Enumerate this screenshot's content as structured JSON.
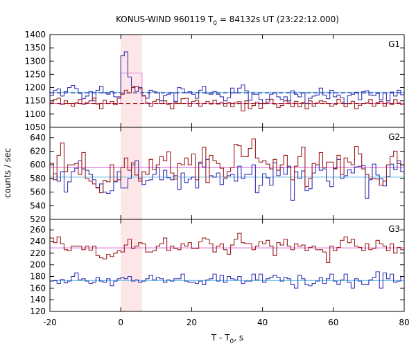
{
  "chart_data": {
    "type": "line",
    "title": "KONUS-WIND 960119 T",
    "title_sub": "0",
    "title_rest": " = 84132s UT (23:22:12.000)",
    "xlabel": "T - T",
    "xlabel_sub": "0",
    "xlabel_rest": ", s",
    "ylabel": "counts / sec",
    "xlim": [
      -20,
      80
    ],
    "x_ticks": [
      "-20",
      "0",
      "20",
      "40",
      "60",
      "80"
    ],
    "x_tick_values": [
      -20,
      0,
      20,
      40,
      60,
      80
    ],
    "highlight": {
      "x_start": 0,
      "x_end": 6,
      "color": "#fde6e8"
    },
    "colors": {
      "blue": "#3434b4",
      "red": "#9a1c1c",
      "pink": "#e27ae2",
      "cyan": "#78c8e8"
    },
    "bin_width": 1.0,
    "panels": [
      {
        "name": "G1",
        "ylim": [
          1050,
          1400
        ],
        "yticks": [
          1050,
          1100,
          1150,
          1200,
          1250,
          1300,
          1350,
          1400
        ],
        "series": [
          {
            "color_key": "blue",
            "x_start": -20,
            "values": [
              1170,
              1190,
              1195,
              1168,
              1185,
              1200,
              1208,
              1196,
              1178,
              1158,
              1168,
              1185,
              1150,
              1190,
              1205,
              1180,
              1175,
              1185,
              1165,
              1165,
              1320,
              1335,
              1240,
              1205,
              1185,
              1200,
              1170,
              1160,
              1190,
              1185,
              1180,
              1150,
              1170,
              1175,
              1180,
              1148,
              1200,
              1195,
              1180,
              1185,
              1175,
              1160,
              1190,
              1205,
              1178,
              1175,
              1185,
              1175,
              1165,
              1150,
              1162,
              1198,
              1180,
              1198,
              1210,
              1188,
              1152,
              1175,
              1175,
              1155,
              1140,
              1156,
              1175,
              1180,
              1165,
              1155,
              1165,
              1150,
              1188,
              1175,
              1165,
              1180,
              1140,
              1160,
              1168,
              1172,
              1198,
              1172,
              1158,
              1190,
              1165,
              1172,
              1162,
              1140,
              1170,
              1175,
              1182,
              1154,
              1185,
              1188,
              1172,
              1170,
              1178,
              1154,
              1180,
              1150,
              1183,
              1168,
              1190,
              1173
            ]
          },
          {
            "color_key": "red",
            "x_start": -20,
            "values": [
              1145,
              1155,
              1160,
              1135,
              1150,
              1140,
              1130,
              1142,
              1155,
              1137,
              1144,
              1150,
              1160,
              1138,
              1120,
              1152,
              1140,
              1148,
              1135,
              1160,
              1175,
              1190,
              1180,
              1200,
              1205,
              1195,
              1168,
              1142,
              1130,
              1148,
              1155,
              1140,
              1150,
              1135,
              1120,
              1145,
              1140,
              1158,
              1160,
              1130,
              1148,
              1152,
              1130,
              1140,
              1148,
              1138,
              1152,
              1138,
              1145,
              1130,
              1143,
              1128,
              1145,
              1147,
              1112,
              1150,
              1120,
              1132,
              1145,
              1122,
              1140,
              1145,
              1156,
              1138,
              1125,
              1132,
              1150,
              1145,
              1128,
              1148,
              1128,
              1143,
              1120,
              1150,
              1130,
              1142,
              1150,
              1147,
              1140,
              1130,
              1135,
              1156,
              1145,
              1128,
              1140,
              1148,
              1120,
              1133,
              1140,
              1142,
              1155,
              1130,
              1143,
              1148,
              1130,
              1145,
              1135,
              1155,
              1142,
              1135
            ]
          }
        ],
        "steps": [
          {
            "color_key": "pink",
            "x_start": -20,
            "values": [
              1140,
              1140,
              1140,
              1140,
              1140,
              1140,
              1140,
              1140,
              1140,
              1140,
              1140,
              1140,
              1140,
              1140,
              1140,
              1140,
              1140,
              1140,
              1140,
              1140,
              1255,
              1255,
              1255,
              1255,
              1255,
              1255,
              1140,
              1140,
              1140,
              1140,
              1140,
              1140,
              1140,
              1140,
              1140,
              1140,
              1140,
              1140,
              1140,
              1140,
              1140,
              1140,
              1140,
              1140,
              1140,
              1140,
              1140,
              1140,
              1140,
              1140,
              1140,
              1140,
              1140,
              1140,
              1140,
              1140,
              1140,
              1140,
              1140,
              1140,
              1140,
              1140,
              1140,
              1140,
              1140,
              1140,
              1140,
              1140,
              1140,
              1140,
              1140,
              1140,
              1140,
              1140,
              1140,
              1140,
              1140,
              1140,
              1140,
              1140,
              1140,
              1140,
              1140,
              1140,
              1140,
              1140,
              1140,
              1140,
              1140,
              1140,
              1140,
              1140,
              1140,
              1140,
              1140,
              1140,
              1140,
              1140,
              1140,
              1140
            ]
          }
        ],
        "hlines": [
          {
            "color_key": "cyan",
            "y": 1182,
            "x_from": -20,
            "x_to": 0
          },
          {
            "color_key": "cyan",
            "y": 1182,
            "x_from": 6,
            "x_to": 80
          },
          {
            "color_key": "blue",
            "y": 1180,
            "x_from": -20,
            "x_to": 80,
            "dashed": true
          },
          {
            "color_key": "red",
            "y": 1140,
            "x_from": -20,
            "x_to": 80,
            "dashed": true
          }
        ]
      },
      {
        "name": "G2",
        "ylim": [
          520,
          655
        ],
        "yticks": [
          520,
          540,
          560,
          580,
          600,
          620,
          640
        ],
        "series": [
          {
            "color_key": "blue",
            "x_start": -20,
            "values": [
              580,
              587,
              576,
              590,
              560,
              575,
              590,
              595,
              606,
              594,
              592,
              586,
              578,
              566,
              572,
              560,
              558,
              562,
              575,
              590,
              566,
              566,
              580,
              600,
              606,
              580,
              571,
              577,
              578,
              586,
              596,
              578,
              592,
              581,
              578,
              584,
              564,
              588,
              574,
              579,
              582,
              566,
              604,
              597,
              608,
              584,
              582,
              588,
              571,
              580,
              584,
              586,
              576,
              598,
              580,
              586,
              586,
              600,
              559,
              570,
              587,
              581,
              570,
              603,
              584,
              596,
              586,
              598,
              548,
              590,
              580,
              591,
              562,
              565,
              588,
              600,
              592,
              594,
              576,
              568,
              595,
              608,
              580,
              584,
              593,
              588,
              597,
              598,
              599,
              551,
              578,
              601,
              585,
              580,
              569,
              583,
              601,
              593,
              606,
              590
            ]
          },
          {
            "color_key": "red",
            "x_start": -20,
            "values": [
              602,
              578,
              614,
              632,
              590,
              600,
              600,
              602,
              586,
              618,
              580,
              576,
              572,
              567,
              559,
              577,
              575,
              600,
              576,
              578,
              596,
              610,
              592,
              603,
              585,
              576,
              590,
              586,
              608,
              593,
              600,
              612,
              606,
              619,
              588,
              579,
              602,
              600,
              610,
              600,
              616,
              578,
              602,
              626,
              574,
              614,
              606,
              602,
              595,
              582,
              590,
              596,
              630,
              628,
              612,
              612,
              624,
              638,
              610,
              604,
              606,
              601,
              594,
              608,
              592,
              600,
              614,
              596,
              578,
              598,
              612,
              626,
              568,
              580,
              602,
              600,
              618,
              596,
              604,
              604,
              594,
              614,
              586,
              610,
              604,
              600,
              627,
              616,
              594,
              586,
              580,
              580,
              579,
              570,
              576,
              600,
              612,
              620,
              602,
              600
            ]
          }
        ],
        "steps": [],
        "hlines": [
          {
            "color_key": "pink",
            "y": 596,
            "x_from": -20,
            "x_to": 80
          },
          {
            "color_key": "cyan",
            "y": 582,
            "x_from": -20,
            "x_to": 80
          }
        ]
      },
      {
        "name": "G3",
        "ylim": [
          120,
          278
        ],
        "yticks": [
          120,
          140,
          160,
          180,
          200,
          220,
          240,
          260
        ],
        "series": [
          {
            "color_key": "blue",
            "x_start": -20,
            "values": [
              172,
              173,
              168,
              175,
              169,
              172,
              180,
              186,
              174,
              176,
              172,
              168,
              170,
              178,
              172,
              170,
              176,
              164,
              172,
              176,
              178,
              176,
              180,
              172,
              174,
              170,
              172,
              176,
              182,
              174,
              178,
              176,
              170,
              174,
              172,
              176,
              176,
              184,
              172,
              170,
              170,
              168,
              172,
              166,
              174,
              176,
              184,
              172,
              182,
              170,
              180,
              176,
              174,
              180,
              168,
              172,
              172,
              184,
              174,
              184,
              170,
              176,
              178,
              182,
              178,
              172,
              178,
              176,
              166,
              160,
              182,
              176,
              166,
              164,
              168,
              172,
              178,
              168,
              176,
              184,
              172,
              166,
              174,
              184,
              170,
              160,
              176,
              172,
              166,
              166,
              174,
              178,
              188,
              160,
              186,
              176,
              184,
              170,
              172,
              180
            ]
          },
          {
            "color_key": "red",
            "x_start": -20,
            "values": [
              246,
              238,
              248,
              236,
              226,
              224,
              232,
              232,
              232,
              226,
              232,
              225,
              232,
              216,
              212,
              210,
              218,
              214,
              220,
              224,
              222,
              234,
              244,
              228,
              232,
              238,
              236,
              222,
              222,
              224,
              232,
              236,
              246,
              224,
              232,
              228,
              226,
              236,
              232,
              238,
              228,
              228,
              240,
              246,
              244,
              236,
              222,
              232,
              236,
              226,
              218,
              234,
              244,
              254,
              238,
              236,
              236,
              226,
              232,
              240,
              236,
              242,
              232,
              216,
              238,
              234,
              244,
              232,
              226,
              236,
              232,
              234,
              224,
              230,
              232,
              226,
              226,
              222,
              204,
              232,
              224,
              230,
              242,
              248,
              238,
              244,
              232,
              230,
              224,
              236,
              226,
              228,
              242,
              236,
              232,
              224,
              236,
              220,
              230,
              226
            ]
          }
        ],
        "steps": [],
        "hlines": [
          {
            "color_key": "pink",
            "y": 229,
            "x_from": -20,
            "x_to": 80
          },
          {
            "color_key": "cyan",
            "y": 173,
            "x_from": -20,
            "x_to": 80
          }
        ]
      }
    ]
  }
}
